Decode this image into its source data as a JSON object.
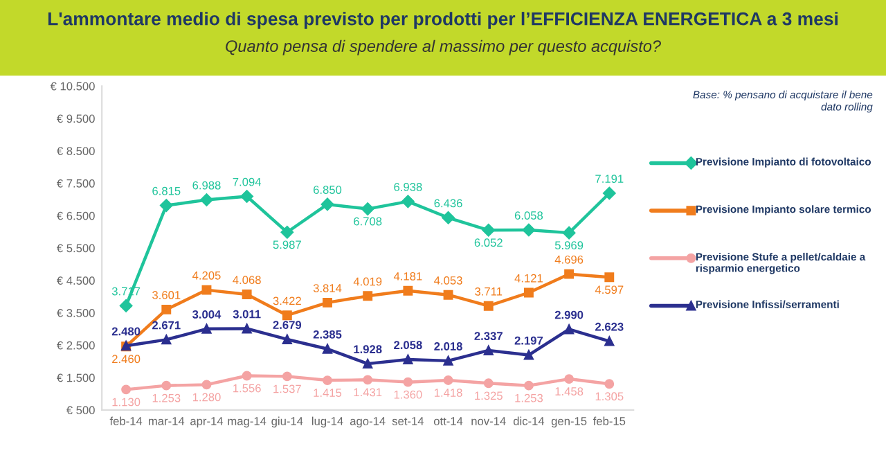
{
  "chart_data": {
    "type": "line",
    "title": "L'ammontare medio di spesa previsto per prodotti per l’EFFICIENZA ENERGETICA a 3 mesi",
    "subtitle": "Quanto pensa di spendere al massimo per questo acquisto?",
    "annotations": [
      "Base: % pensano di acquistare il bene\ndato rolling"
    ],
    "categories": [
      "feb-14",
      "mar-14",
      "apr-14",
      "mag-14",
      "giu-14",
      "lug-14",
      "ago-14",
      "set-14",
      "ott-14",
      "nov-14",
      "dic-14",
      "gen-15",
      "feb-15"
    ],
    "series": [
      {
        "name": "Previsione Impianto di fotovoltaico",
        "color": "#1fc49b",
        "marker": "diamond",
        "values": [
          3717,
          6815,
          6988,
          7094,
          5987,
          6850,
          6708,
          6938,
          6436,
          6052,
          6058,
          5969,
          7191
        ],
        "value_labels": [
          "3.717",
          "6.815",
          "6.988",
          "7.094",
          "5.987",
          "6.850",
          "6.708",
          "6.938",
          "6.436",
          "6.052",
          "6.058",
          "5.969",
          "7.191"
        ]
      },
      {
        "name": "Previsione Impianto solare termico",
        "color": "#f07c1c",
        "marker": "square",
        "values": [
          2460,
          3601,
          4205,
          4068,
          3422,
          3814,
          4019,
          4181,
          4053,
          3711,
          4121,
          4696,
          4597
        ],
        "value_labels": [
          "2.460",
          "3.601",
          "4.205",
          "4.068",
          "3.422",
          "3.814",
          "4.019",
          "4.181",
          "4.053",
          "3.711",
          "4.121",
          "4.696",
          "4.597"
        ]
      },
      {
        "name": "Previsione Stufe a pellet/caldaie a risparmio energetico",
        "color": "#f4a3a3",
        "marker": "circle",
        "values": [
          1130,
          1253,
          1280,
          1556,
          1537,
          1415,
          1431,
          1360,
          1418,
          1325,
          1253,
          1458,
          1305
        ],
        "value_labels": [
          "1.130",
          "1.253",
          "1.280",
          "1.556",
          "1.537",
          "1.415",
          "1.431",
          "1.360",
          "1.418",
          "1.325",
          "1.253",
          "1.458",
          "1.305"
        ]
      },
      {
        "name": "Previsione Infissi/serramenti",
        "color": "#2b2f8f",
        "marker": "triangle",
        "values": [
          2480,
          2671,
          3004,
          3011,
          2679,
          2385,
          1928,
          2058,
          2018,
          2337,
          2197,
          2990,
          2623
        ],
        "value_labels": [
          "2.480",
          "2.671",
          "3.004",
          "3.011",
          "2.679",
          "2.385",
          "1.928",
          "2.058",
          "2.018",
          "2.337",
          "2.197",
          "2.990",
          "2.623"
        ]
      }
    ],
    "ylim": [
      500,
      10500
    ],
    "yticks": [
      {
        "value": 500,
        "label": "€ 500"
      },
      {
        "value": 1500,
        "label": "€ 1.500"
      },
      {
        "value": 2500,
        "label": "€ 2.500"
      },
      {
        "value": 3500,
        "label": "€ 3.500"
      },
      {
        "value": 4500,
        "label": "€ 4.500"
      },
      {
        "value": 5500,
        "label": "€ 5.500"
      },
      {
        "value": 6500,
        "label": "€ 6.500"
      },
      {
        "value": 7500,
        "label": "€ 7.500"
      },
      {
        "value": 8500,
        "label": "€ 8.500"
      },
      {
        "value": 9500,
        "label": "€ 9.500"
      },
      {
        "value": 10500,
        "label": "€ 10.500"
      }
    ],
    "grid": false,
    "legend": "right",
    "line_style": "solid"
  }
}
